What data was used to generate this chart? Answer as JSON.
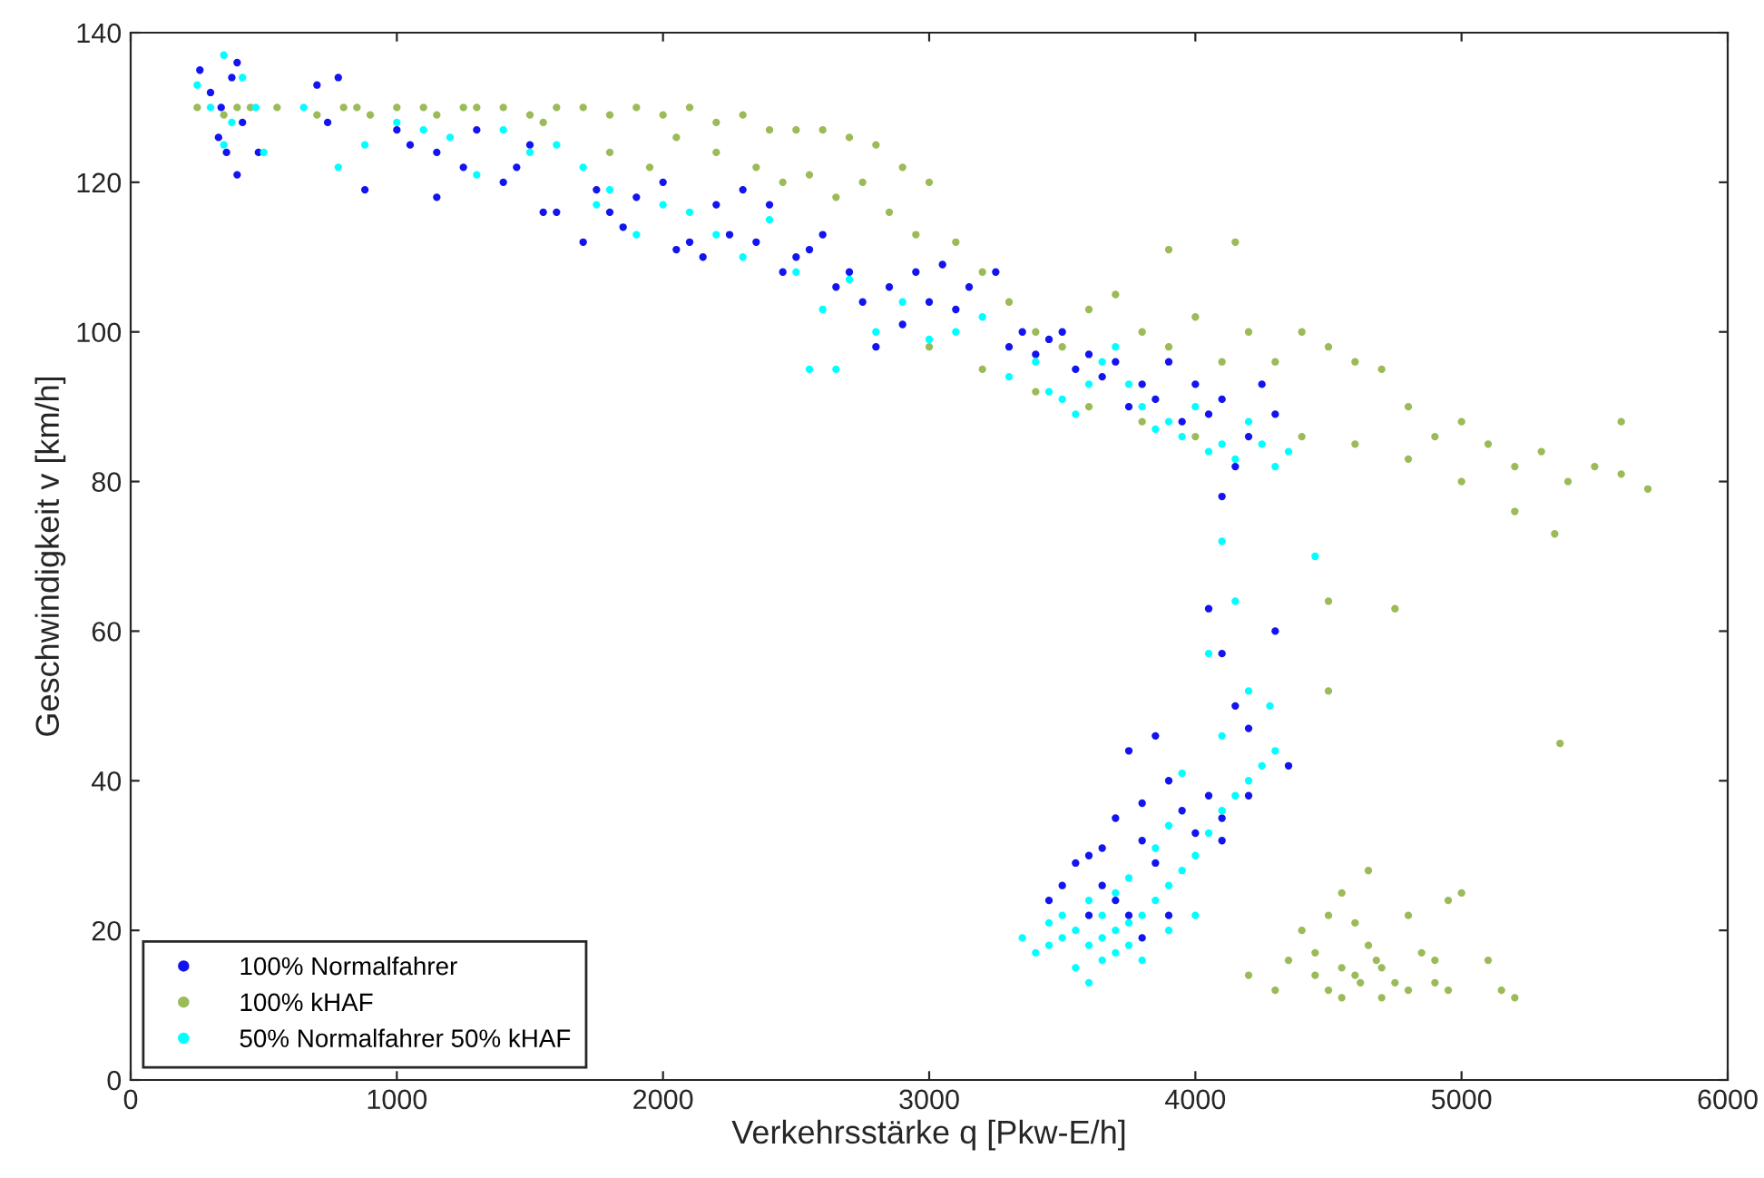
{
  "chart_data": {
    "type": "scatter",
    "xlabel": "Verkehrsstärke q [Pkw-E/h]",
    "ylabel": "Geschwindigkeit v [km/h]",
    "xlim": [
      0,
      6000
    ],
    "ylim": [
      0,
      140
    ],
    "xticks": [
      0,
      1000,
      2000,
      3000,
      4000,
      5000,
      6000
    ],
    "yticks": [
      0,
      20,
      40,
      60,
      80,
      100,
      120,
      140
    ],
    "grid": false,
    "legend": "bottom left",
    "marker": "circle",
    "series": [
      {
        "name": "100% Normalfahrer",
        "color": "#1414f0",
        "x": [
          260,
          300,
          340,
          380,
          400,
          420,
          330,
          360,
          400,
          480,
          700,
          780,
          740,
          880,
          1000,
          1050,
          1150,
          1150,
          1300,
          1250,
          1400,
          1500,
          1550,
          1450,
          1600,
          1700,
          1750,
          1800,
          1850,
          1900,
          2000,
          2050,
          2100,
          2150,
          2200,
          2250,
          2300,
          2350,
          2400,
          2450,
          2500,
          2550,
          2600,
          2650,
          2700,
          2750,
          2800,
          2850,
          2900,
          2950,
          3000,
          3050,
          3100,
          3150,
          3250,
          3300,
          3350,
          3400,
          3450,
          3500,
          3550,
          3600,
          3650,
          3700,
          3750,
          3800,
          3850,
          3900,
          3950,
          4000,
          4050,
          4100,
          4150,
          4200,
          4250,
          4300,
          4100,
          4050,
          4100,
          4150,
          4200,
          4300,
          4350,
          3750,
          3850,
          3900,
          4000,
          3950,
          4050,
          4100,
          3800,
          3700,
          3600,
          3550,
          3500,
          3450,
          3650,
          3700,
          3750,
          3850,
          3900,
          4100,
          4200,
          3600,
          3800,
          3650,
          3800
        ],
        "values": [
          135,
          132,
          130,
          134,
          136,
          128,
          126,
          124,
          121,
          124,
          133,
          134,
          128,
          119,
          127,
          125,
          118,
          124,
          127,
          122,
          120,
          125,
          116,
          122,
          116,
          112,
          119,
          116,
          114,
          118,
          120,
          111,
          112,
          110,
          117,
          113,
          119,
          112,
          117,
          108,
          110,
          111,
          113,
          106,
          108,
          104,
          98,
          106,
          101,
          108,
          104,
          109,
          103,
          106,
          108,
          98,
          100,
          97,
          99,
          100,
          95,
          97,
          94,
          96,
          90,
          93,
          91,
          96,
          88,
          93,
          89,
          91,
          82,
          86,
          93,
          89,
          78,
          63,
          57,
          50,
          47,
          60,
          42,
          44,
          46,
          40,
          33,
          36,
          38,
          35,
          37,
          35,
          30,
          29,
          26,
          24,
          26,
          24,
          22,
          29,
          22,
          32,
          38,
          22,
          19,
          31,
          32
        ]
      },
      {
        "name": "100% kHAF",
        "color": "#9bbb59",
        "x": [
          250,
          350,
          400,
          450,
          550,
          700,
          800,
          850,
          900,
          1000,
          1100,
          1150,
          1250,
          1300,
          1400,
          1500,
          1550,
          1600,
          1700,
          1800,
          1900,
          2000,
          2100,
          2200,
          2300,
          2400,
          2500,
          2600,
          2700,
          2800,
          2900,
          3000,
          1800,
          1950,
          2050,
          2200,
          2350,
          2450,
          2550,
          2650,
          2750,
          2850,
          2950,
          3100,
          3200,
          3300,
          3400,
          3500,
          3600,
          3700,
          3800,
          3900,
          4000,
          4100,
          4200,
          4300,
          4400,
          4500,
          4600,
          4700,
          4800,
          4900,
          5000,
          5100,
          5200,
          5300,
          5400,
          5500,
          5600,
          5700,
          3000,
          3200,
          3400,
          3600,
          3800,
          4000,
          4400,
          4600,
          4800,
          5000,
          5200,
          5350,
          5600,
          4150,
          3900,
          4500,
          4500,
          4750,
          5370,
          4200,
          4350,
          4400,
          4450,
          4500,
          4550,
          4600,
          4650,
          4700,
          4750,
          4800,
          4850,
          4900,
          5000,
          5100,
          5200,
          4500,
          4550,
          4600,
          4700,
          4800,
          4900,
          4450,
          4550,
          4620,
          4680,
          4950,
          5150,
          4650,
          4950,
          4300
        ],
        "values": [
          130,
          129,
          130,
          130,
          130,
          129,
          130,
          130,
          129,
          130,
          130,
          129,
          130,
          130,
          130,
          129,
          128,
          130,
          130,
          129,
          130,
          129,
          130,
          128,
          129,
          127,
          127,
          127,
          126,
          125,
          122,
          120,
          124,
          122,
          126,
          124,
          122,
          120,
          121,
          118,
          120,
          116,
          113,
          112,
          108,
          104,
          100,
          98,
          103,
          105,
          100,
          98,
          102,
          96,
          100,
          96,
          100,
          98,
          96,
          95,
          90,
          86,
          88,
          85,
          82,
          84,
          80,
          82,
          81,
          79,
          98,
          95,
          92,
          90,
          88,
          86,
          86,
          85,
          83,
          80,
          76,
          73,
          88,
          112,
          111,
          64,
          52,
          63,
          45,
          14,
          16,
          20,
          17,
          22,
          25,
          21,
          18,
          15,
          13,
          22,
          17,
          13,
          25,
          16,
          11,
          12,
          11,
          14,
          11,
          12,
          16,
          14,
          15,
          13,
          16,
          12,
          12,
          28,
          24,
          12
        ]
      },
      {
        "name": "50% Normalfahrer 50% kHAF",
        "color": "#00ffff",
        "x": [
          250,
          300,
          350,
          380,
          420,
          470,
          350,
          500,
          650,
          780,
          880,
          1000,
          1100,
          1200,
          1300,
          1400,
          1500,
          1600,
          1700,
          1750,
          1800,
          1900,
          2000,
          2100,
          2200,
          2300,
          2400,
          2500,
          2600,
          2550,
          2650,
          2700,
          2800,
          2900,
          3000,
          3100,
          3200,
          3300,
          3400,
          3450,
          3500,
          3550,
          3600,
          3650,
          3700,
          3750,
          3800,
          3850,
          3900,
          3950,
          4000,
          4050,
          4100,
          4150,
          4200,
          4250,
          4300,
          4350,
          4450,
          4100,
          4150,
          4050,
          4200,
          4280,
          4100,
          4300,
          4250,
          4200,
          4150,
          4100,
          4050,
          4000,
          3950,
          3900,
          3850,
          3800,
          3750,
          3700,
          3650,
          3600,
          3550,
          3500,
          3450,
          3400,
          3350,
          3500,
          3600,
          3650,
          3700,
          3750,
          3600,
          3700,
          3800,
          3550,
          3750,
          3900,
          3850,
          3650,
          3450,
          3900,
          4000,
          3950
        ],
        "values": [
          133,
          130,
          137,
          128,
          134,
          130,
          125,
          124,
          130,
          122,
          125,
          128,
          127,
          126,
          121,
          127,
          124,
          125,
          122,
          117,
          119,
          113,
          117,
          116,
          113,
          110,
          115,
          108,
          103,
          95,
          95,
          107,
          100,
          104,
          99,
          100,
          102,
          94,
          96,
          92,
          91,
          89,
          93,
          96,
          98,
          93,
          90,
          87,
          88,
          86,
          90,
          84,
          85,
          83,
          88,
          85,
          82,
          84,
          70,
          72,
          64,
          57,
          52,
          50,
          46,
          44,
          42,
          40,
          38,
          36,
          33,
          30,
          28,
          26,
          24,
          22,
          21,
          20,
          19,
          18,
          20,
          19,
          18,
          17,
          19,
          22,
          24,
          16,
          17,
          18,
          13,
          25,
          16,
          15,
          27,
          20,
          31,
          22,
          21,
          34,
          22,
          41
        ]
      }
    ]
  }
}
